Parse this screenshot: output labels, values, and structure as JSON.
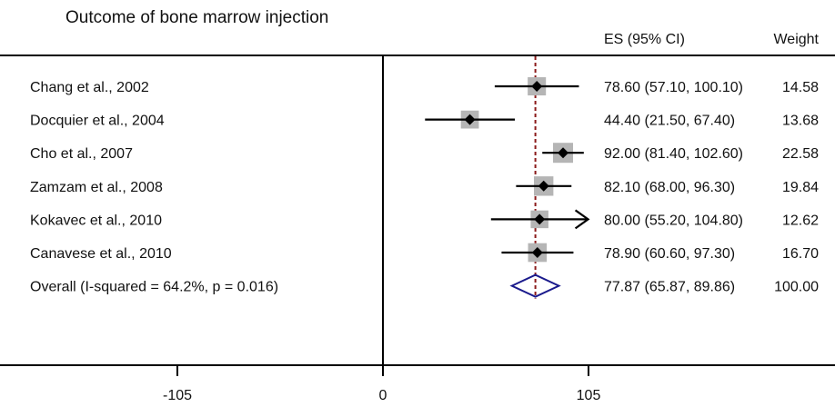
{
  "chart_data": {
    "type": "forest",
    "title": "Outcome of bone marrow injection",
    "columns": {
      "es_header": "ES (95% CI)",
      "weight_header": "Weight"
    },
    "xticks": [
      -105,
      0,
      105
    ],
    "xlim": [
      -195,
      240
    ],
    "null_line": 0,
    "overall_line": 77.87,
    "studies": [
      {
        "label": "Chang et al., 2002",
        "es": 78.6,
        "lo": 57.1,
        "hi": 100.1,
        "weight": 14.58,
        "es_text": "78.60 (57.10, 100.10)",
        "weight_text": "14.58"
      },
      {
        "label": "Docquier et al., 2004",
        "es": 44.4,
        "lo": 21.5,
        "hi": 67.4,
        "weight": 13.68,
        "es_text": "44.40 (21.50, 67.40)",
        "weight_text": "13.68"
      },
      {
        "label": "Cho et al., 2007",
        "es": 92.0,
        "lo": 81.4,
        "hi": 102.6,
        "weight": 22.58,
        "es_text": "92.00 (81.40, 102.60)",
        "weight_text": "22.58"
      },
      {
        "label": "Zamzam et al., 2008",
        "es": 82.1,
        "lo": 68.0,
        "hi": 96.3,
        "weight": 19.84,
        "es_text": "82.10 (68.00, 96.30)",
        "weight_text": "19.84"
      },
      {
        "label": "Kokavec et al., 2010",
        "es": 80.0,
        "lo": 55.2,
        "hi": 104.8,
        "weight": 12.62,
        "es_text": "80.00 (55.20, 104.80)",
        "weight_text": "12.62",
        "arrow_right": true
      },
      {
        "label": "Canavese et al., 2010",
        "es": 78.9,
        "lo": 60.6,
        "hi": 97.3,
        "weight": 16.7,
        "es_text": "78.90 (60.60, 97.30)",
        "weight_text": "16.70"
      }
    ],
    "overall": {
      "label": "Overall  (I-squared = 64.2%, p = 0.016)",
      "es": 77.87,
      "lo": 65.87,
      "hi": 89.86,
      "weight": 100.0,
      "es_text": "77.87 (65.87, 89.86)",
      "weight_text": "100.00"
    },
    "colors": {
      "square": "#b5b5b5",
      "point": "#000000",
      "diamond": "#1a1a8c",
      "overall_line": "#8b1a1a",
      "axis": "#000000"
    }
  }
}
